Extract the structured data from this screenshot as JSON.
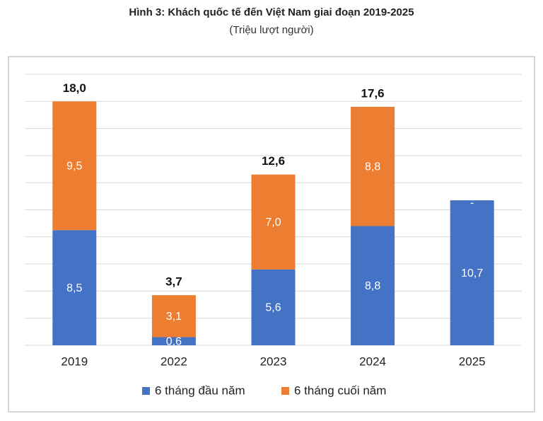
{
  "chart_data": {
    "type": "stacked_bar",
    "title": "Hình 3: Khách quốc tế đến Việt Nam giai đoạn 2019-2025",
    "subtitle": "(Triệu lượt người)",
    "categories": [
      "2019",
      "2022",
      "2023",
      "2024",
      "2025"
    ],
    "series": [
      {
        "name": "6 tháng đầu năm",
        "color": "#4472c4",
        "values": [
          8.5,
          0.6,
          5.6,
          8.8,
          10.7
        ],
        "value_labels": [
          "8,5",
          "0,6",
          "5,6",
          "8,8",
          "10,7"
        ]
      },
      {
        "name": "6 tháng cuối năm",
        "color": "#ed7d31",
        "values": [
          9.5,
          3.1,
          7.0,
          8.8,
          null
        ],
        "value_labels": [
          "9,5",
          "3,1",
          "7,0",
          "8,8",
          "-"
        ]
      }
    ],
    "totals": [
      18.0,
      3.7,
      12.6,
      17.6,
      null
    ],
    "total_labels": [
      "18,0",
      "3,7",
      "12,6",
      "17,6",
      null
    ],
    "ylim": [
      0,
      20
    ],
    "yticks": [
      0,
      2,
      4,
      6,
      8,
      10,
      12,
      14,
      16,
      18,
      20
    ],
    "grid": true,
    "legend": "bottom"
  }
}
